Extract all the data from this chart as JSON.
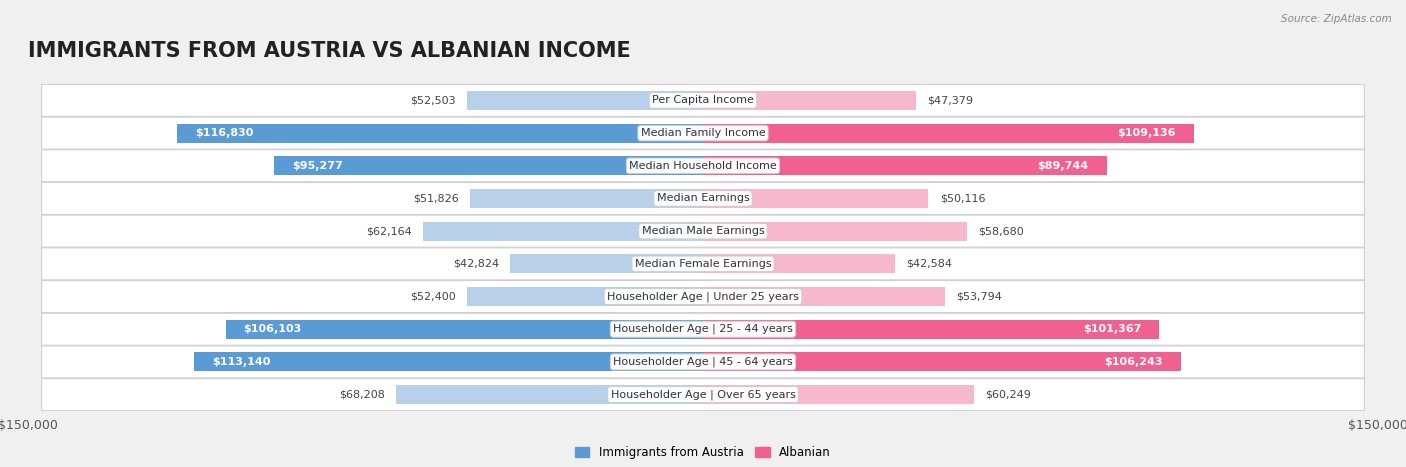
{
  "title": "IMMIGRANTS FROM AUSTRIA VS ALBANIAN INCOME",
  "source": "Source: ZipAtlas.com",
  "categories": [
    "Per Capita Income",
    "Median Family Income",
    "Median Household Income",
    "Median Earnings",
    "Median Male Earnings",
    "Median Female Earnings",
    "Householder Age | Under 25 years",
    "Householder Age | 25 - 44 years",
    "Householder Age | 45 - 64 years",
    "Householder Age | Over 65 years"
  ],
  "austria_values": [
    52503,
    116830,
    95277,
    51826,
    62164,
    42824,
    52400,
    106103,
    113140,
    68208
  ],
  "albanian_values": [
    47379,
    109136,
    89744,
    50116,
    58680,
    42584,
    53794,
    101367,
    106243,
    60249
  ],
  "austria_labels": [
    "$52,503",
    "$116,830",
    "$95,277",
    "$51,826",
    "$62,164",
    "$42,824",
    "$52,400",
    "$106,103",
    "$113,140",
    "$68,208"
  ],
  "albanian_labels": [
    "$47,379",
    "$109,136",
    "$89,744",
    "$50,116",
    "$58,680",
    "$42,584",
    "$53,794",
    "$101,367",
    "$106,243",
    "$60,249"
  ],
  "austria_color_light": "#b8d0ea",
  "austria_color_dark": "#5b9bd5",
  "albanian_color_light": "#f7b8cc",
  "albanian_color_dark": "#f06090",
  "threshold_inside": 75000,
  "max_value": 150000,
  "bar_height": 0.58,
  "background_color": "#f0f0f0",
  "row_bg_color": "#ffffff",
  "title_fontsize": 15,
  "axis_label_fontsize": 9,
  "bar_label_fontsize": 8,
  "category_fontsize": 8
}
